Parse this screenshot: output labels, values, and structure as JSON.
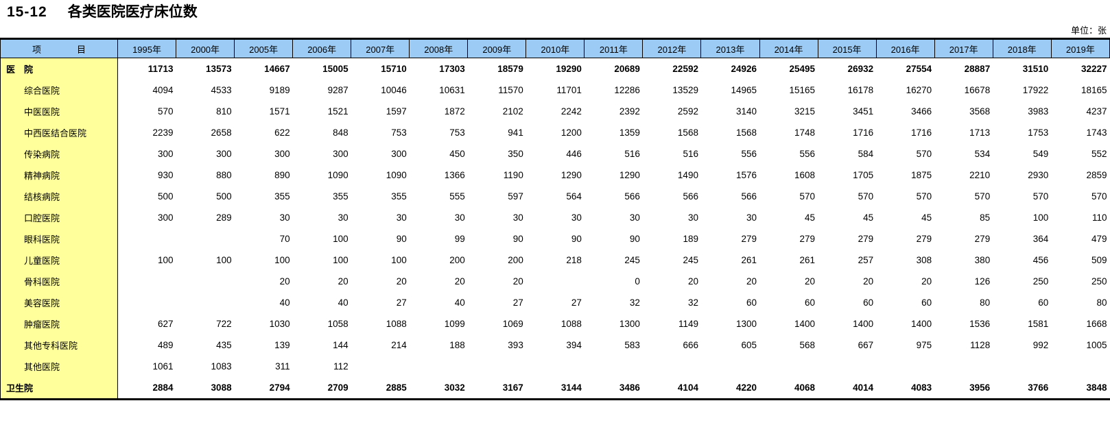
{
  "page": {
    "title_number": "15-12",
    "title_text": "各类医院医疗床位数",
    "unit_label": "单位：张"
  },
  "table": {
    "item_col_header": "项　　　　目",
    "year_columns": [
      "1995年",
      "2000年",
      "2005年",
      "2006年",
      "2007年",
      "2008年",
      "2009年",
      "2010年",
      "2011年",
      "2012年",
      "2013年",
      "2014年",
      "2015年",
      "2016年",
      "2017年",
      "2018年",
      "2019年"
    ],
    "rows": [
      {
        "label": "医　院",
        "indent": false,
        "bold": true,
        "values": [
          11713,
          13573,
          14667,
          15005,
          15710,
          17303,
          18579,
          19290,
          20689,
          22592,
          24926,
          25495,
          26932,
          27554,
          28887,
          31510,
          32227
        ]
      },
      {
        "label": "综合医院",
        "indent": true,
        "bold": false,
        "values": [
          4094,
          4533,
          9189,
          9287,
          10046,
          10631,
          11570,
          11701,
          12286,
          13529,
          14965,
          15165,
          16178,
          16270,
          16678,
          17922,
          18165
        ]
      },
      {
        "label": "中医医院",
        "indent": true,
        "bold": false,
        "values": [
          570,
          810,
          1571,
          1521,
          1597,
          1872,
          2102,
          2242,
          2392,
          2592,
          3140,
          3215,
          3451,
          3466,
          3568,
          3983,
          4237
        ]
      },
      {
        "label": "中西医结合医院",
        "indent": true,
        "bold": false,
        "values": [
          2239,
          2658,
          622,
          848,
          753,
          753,
          941,
          1200,
          1359,
          1568,
          1568,
          1748,
          1716,
          1716,
          1713,
          1753,
          1743
        ]
      },
      {
        "label": "传染病院",
        "indent": true,
        "bold": false,
        "values": [
          300,
          300,
          300,
          300,
          300,
          450,
          350,
          446,
          516,
          516,
          556,
          556,
          584,
          570,
          534,
          549,
          552
        ]
      },
      {
        "label": "精神病院",
        "indent": true,
        "bold": false,
        "values": [
          930,
          880,
          890,
          1090,
          1090,
          1366,
          1190,
          1290,
          1290,
          1490,
          1576,
          1608,
          1705,
          1875,
          2210,
          2930,
          2859
        ]
      },
      {
        "label": "结核病院",
        "indent": true,
        "bold": false,
        "values": [
          500,
          500,
          355,
          355,
          355,
          555,
          597,
          564,
          566,
          566,
          566,
          570,
          570,
          570,
          570,
          570,
          570
        ]
      },
      {
        "label": "口腔医院",
        "indent": true,
        "bold": false,
        "values": [
          300,
          289,
          30,
          30,
          30,
          30,
          30,
          30,
          30,
          30,
          30,
          45,
          45,
          45,
          85,
          100,
          110
        ]
      },
      {
        "label": "眼科医院",
        "indent": true,
        "bold": false,
        "values": [
          null,
          null,
          70,
          100,
          90,
          99,
          90,
          90,
          90,
          189,
          279,
          279,
          279,
          279,
          279,
          364,
          479
        ]
      },
      {
        "label": "儿童医院",
        "indent": true,
        "bold": false,
        "values": [
          100,
          100,
          100,
          100,
          100,
          200,
          200,
          218,
          245,
          245,
          261,
          261,
          257,
          308,
          380,
          456,
          509
        ]
      },
      {
        "label": "骨科医院",
        "indent": true,
        "bold": false,
        "values": [
          null,
          null,
          20,
          20,
          20,
          20,
          20,
          null,
          0,
          20,
          20,
          20,
          20,
          20,
          126,
          250,
          250
        ]
      },
      {
        "label": "美容医院",
        "indent": true,
        "bold": false,
        "values": [
          null,
          null,
          40,
          40,
          27,
          40,
          27,
          27,
          32,
          32,
          60,
          60,
          60,
          60,
          80,
          60,
          80
        ]
      },
      {
        "label": "肿瘤医院",
        "indent": true,
        "bold": false,
        "values": [
          627,
          722,
          1030,
          1058,
          1088,
          1099,
          1069,
          1088,
          1300,
          1149,
          1300,
          1400,
          1400,
          1400,
          1536,
          1581,
          1668
        ]
      },
      {
        "label": "其他专科医院",
        "indent": true,
        "bold": false,
        "values": [
          489,
          435,
          139,
          144,
          214,
          188,
          393,
          394,
          583,
          666,
          605,
          568,
          667,
          975,
          1128,
          992,
          1005
        ]
      },
      {
        "label": "其他医院",
        "indent": true,
        "bold": false,
        "values": [
          1061,
          1083,
          311,
          112,
          null,
          null,
          null,
          null,
          null,
          null,
          null,
          null,
          null,
          null,
          null,
          null,
          null
        ]
      },
      {
        "label": "卫生院",
        "indent": false,
        "bold": true,
        "values": [
          2884,
          3088,
          2794,
          2709,
          2885,
          3032,
          3167,
          3144,
          3486,
          4104,
          4220,
          4068,
          4014,
          4083,
          3956,
          3766,
          3848
        ]
      }
    ]
  },
  "colors": {
    "header_bg": "#9CCCF5",
    "label_col_bg": "#FFFF9C",
    "border": "#000000"
  }
}
